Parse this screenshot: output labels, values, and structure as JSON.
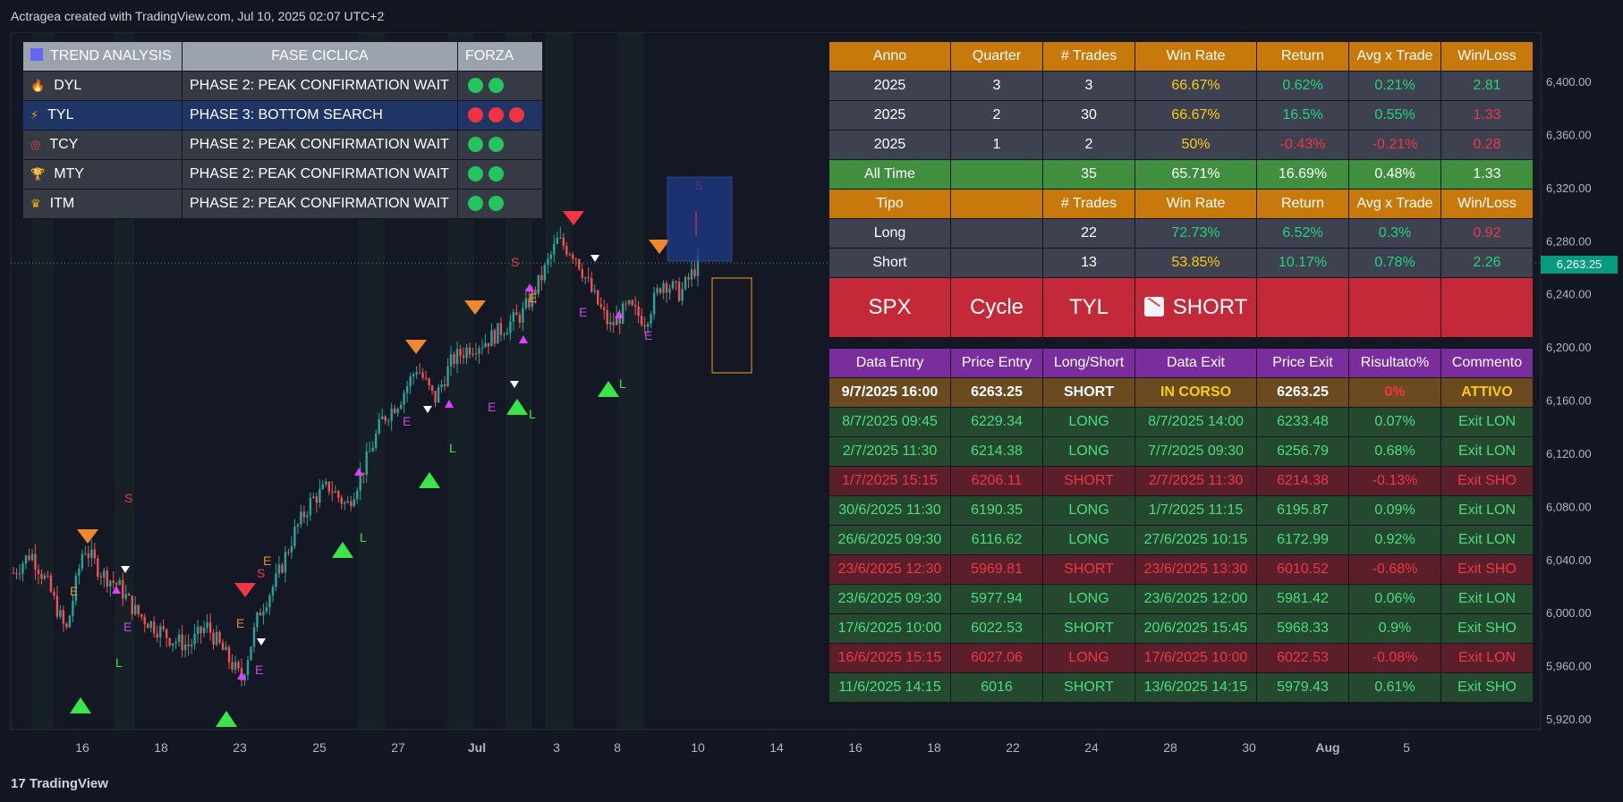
{
  "header": {
    "attribution": "Actragea created with TradingView.com, Jul 10, 2025 02:07 UTC+2"
  },
  "footer": {
    "brand": "TradingView"
  },
  "price_tag": "6,263.25",
  "trend_table": {
    "headers": [
      "TREND ANALYSIS",
      "FASE CICLICA",
      "FORZA"
    ],
    "rows": [
      {
        "name": "DYL",
        "icon": "fire-icon",
        "phase": "PHASE 2: PEAK CONFIRMATION WAIT",
        "dots": [
          "#22c55e",
          "#22c55e"
        ]
      },
      {
        "name": "TYL",
        "icon": "lightning-icon",
        "phase": "PHASE 3: BOTTOM SEARCH",
        "dots": [
          "#ef3340",
          "#ef3340",
          "#ef3340"
        ]
      },
      {
        "name": "TCY",
        "icon": "target-icon",
        "phase": "PHASE 2: PEAK CONFIRMATION WAIT",
        "dots": [
          "#22c55e",
          "#22c55e"
        ]
      },
      {
        "name": "MTY",
        "icon": "trophy-icon",
        "phase": "PHASE 2: PEAK CONFIRMATION WAIT",
        "dots": [
          "#22c55e",
          "#22c55e"
        ]
      },
      {
        "name": "ITM",
        "icon": "crown-icon",
        "phase": "PHASE 2: PEAK CONFIRMATION WAIT",
        "dots": [
          "#22c55e",
          "#22c55e"
        ]
      }
    ]
  },
  "stats_table": {
    "quarter_headers": [
      "Anno",
      "Quarter",
      "# Trades",
      "Win Rate",
      "Return",
      "Avg x Trade",
      "Win/Loss"
    ],
    "quarter_rows": [
      [
        "2025",
        "3",
        "3",
        "66.67%",
        "0.62%",
        "0.21%",
        "2.81"
      ],
      [
        "2025",
        "2",
        "30",
        "66.67%",
        "16.5%",
        "0.55%",
        "1.33"
      ],
      [
        "2025",
        "1",
        "2",
        "50%",
        "-0.43%",
        "-0.21%",
        "0.28"
      ]
    ],
    "all_time": [
      "All Time",
      "",
      "35",
      "65.71%",
      "16.69%",
      "0.48%",
      "1.33"
    ],
    "type_headers": [
      "Tipo",
      "",
      "# Trades",
      "Win Rate",
      "Return",
      "Avg x Trade",
      "Win/Loss"
    ],
    "type_rows": [
      [
        "Long",
        "",
        "22",
        "72.73%",
        "6.52%",
        "0.3%",
        "0.92"
      ],
      [
        "Short",
        "",
        "13",
        "53.85%",
        "10.17%",
        "0.78%",
        "2.26"
      ]
    ],
    "banner": [
      "SPX",
      "Cycle",
      "TYL",
      "SHORT"
    ]
  },
  "trades_table": {
    "headers": [
      "Data Entry",
      "Price Entry",
      "Long/Short",
      "Data Exit",
      "Price Exit",
      "Risultato%",
      "Commento"
    ],
    "active": [
      "9/7/2025 16:00",
      "6263.25",
      "SHORT",
      "IN CORSO",
      "6263.25",
      "0%",
      "ATTIVO"
    ],
    "rows": [
      {
        "win": true,
        "cells": [
          "8/7/2025 09:45",
          "6229.34",
          "LONG",
          "8/7/2025 14:00",
          "6233.48",
          "0.07%",
          "Exit LON"
        ]
      },
      {
        "win": true,
        "cells": [
          "2/7/2025 11:30",
          "6214.38",
          "LONG",
          "7/7/2025 09:30",
          "6256.79",
          "0.68%",
          "Exit LON"
        ]
      },
      {
        "win": false,
        "cells": [
          "1/7/2025 15:15",
          "6206.11",
          "SHORT",
          "2/7/2025 11:30",
          "6214.38",
          "-0.13%",
          "Exit SHO"
        ]
      },
      {
        "win": true,
        "cells": [
          "30/6/2025 11:30",
          "6190.35",
          "LONG",
          "1/7/2025 11:15",
          "6195.87",
          "0.09%",
          "Exit LON"
        ]
      },
      {
        "win": true,
        "cells": [
          "26/6/2025 09:30",
          "6116.62",
          "LONG",
          "27/6/2025 10:15",
          "6172.99",
          "0.92%",
          "Exit LON"
        ]
      },
      {
        "win": false,
        "cells": [
          "23/6/2025 12:30",
          "5969.81",
          "SHORT",
          "23/6/2025 13:30",
          "6010.52",
          "-0.68%",
          "Exit SHO"
        ]
      },
      {
        "win": true,
        "cells": [
          "23/6/2025 09:30",
          "5977.94",
          "LONG",
          "23/6/2025 12:00",
          "5981.42",
          "0.06%",
          "Exit LON"
        ]
      },
      {
        "win": true,
        "cells": [
          "17/6/2025 10:00",
          "6022.53",
          "SHORT",
          "20/6/2025 15:45",
          "5968.33",
          "0.9%",
          "Exit SHO"
        ]
      },
      {
        "win": false,
        "cells": [
          "16/6/2025 15:15",
          "6027.06",
          "LONG",
          "17/6/2025 10:00",
          "6022.53",
          "-0.08%",
          "Exit LON"
        ]
      },
      {
        "win": true,
        "cells": [
          "11/6/2025 14:15",
          "6016",
          "SHORT",
          "13/6/2025 14:15",
          "5979.43",
          "0.61%",
          "Exit SHO"
        ]
      }
    ]
  },
  "chart_data": {
    "type": "candlestick",
    "y_ticks": [
      "6,400.00",
      "6,360.00",
      "6,320.00",
      "6,280.00",
      "6,240.00",
      "6,200.00",
      "6,160.00",
      "6,120.00",
      "6,080.00",
      "6,040.00",
      "6,000.00",
      "5,960.00",
      "5,920.00"
    ],
    "x_ticks": [
      "16",
      "18",
      "23",
      "25",
      "27",
      "Jul",
      "3",
      "8",
      "10",
      "14",
      "16",
      "18",
      "22",
      "24",
      "28",
      "30",
      "Aug",
      "5"
    ],
    "ylim": [
      5920,
      6400
    ],
    "last_price": 6263.25,
    "close_path": [
      [
        "Jun 13",
        6030
      ],
      [
        "Jun 13",
        6045
      ],
      [
        "Jun 13",
        6020
      ],
      [
        "Jun 13",
        5985
      ],
      [
        "Jun 16",
        6050
      ],
      [
        "Jun 16",
        6030
      ],
      [
        "Jun 16",
        6020
      ],
      [
        "Jun 17",
        6000
      ],
      [
        "Jun 17",
        5990
      ],
      [
        "Jun 18",
        5980
      ],
      [
        "Jun 18",
        5975
      ],
      [
        "Jun 20",
        5990
      ],
      [
        "Jun 20",
        5970
      ],
      [
        "Jun 23",
        5950
      ],
      [
        "Jun 23",
        6000
      ],
      [
        "Jun 23",
        6025
      ],
      [
        "Jun 24",
        6060
      ],
      [
        "Jun 24",
        6085
      ],
      [
        "Jun 25",
        6095
      ],
      [
        "Jun 25",
        6080
      ],
      [
        "Jun 26",
        6110
      ],
      [
        "Jun 26",
        6145
      ],
      [
        "Jun 27",
        6160
      ],
      [
        "Jun 27",
        6185
      ],
      [
        "Jun 27",
        6160
      ],
      [
        "Jun 30",
        6190
      ],
      [
        "Jun 30",
        6200
      ],
      [
        "Jul 1",
        6205
      ],
      [
        "Jul 1",
        6215
      ],
      [
        "Jul 2",
        6225
      ],
      [
        "Jul 2",
        6250
      ],
      [
        "Jul 3",
        6280
      ],
      [
        "Jul 3",
        6270
      ],
      [
        "Jul 7",
        6240
      ],
      [
        "Jul 7",
        6215
      ],
      [
        "Jul 8",
        6230
      ],
      [
        "Jul 8",
        6220
      ],
      [
        "Jul 9",
        6250
      ],
      [
        "Jul 9",
        6240
      ],
      [
        "Jul 9",
        6263
      ]
    ]
  }
}
